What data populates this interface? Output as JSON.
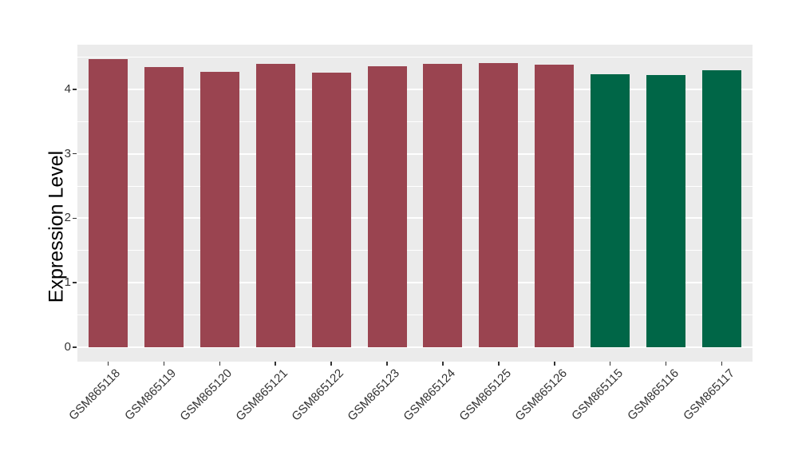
{
  "chart_data": {
    "type": "bar",
    "title": "",
    "xlabel": "",
    "ylabel": "Expression Level",
    "categories": [
      "GSM865118",
      "GSM865119",
      "GSM865120",
      "GSM865121",
      "GSM865122",
      "GSM865123",
      "GSM865124",
      "GSM865125",
      "GSM865126",
      "GSM865115",
      "GSM865116",
      "GSM865117"
    ],
    "values": [
      4.47,
      4.35,
      4.27,
      4.4,
      4.26,
      4.36,
      4.4,
      4.41,
      4.38,
      4.24,
      4.22,
      4.3
    ],
    "bar_colors": [
      "#9A4450",
      "#9A4450",
      "#9A4450",
      "#9A4450",
      "#9A4450",
      "#9A4450",
      "#9A4450",
      "#9A4450",
      "#9A4450",
      "#006647",
      "#006647",
      "#006647"
    ],
    "y_ticks": [
      "0",
      "1",
      "2",
      "3",
      "4"
    ],
    "y_tick_values": [
      0,
      1,
      2,
      3,
      4
    ],
    "y_minor_gridline_values": [
      0.5,
      1.5,
      2.5,
      3.5,
      4.5
    ],
    "ylim": [
      -0.22,
      4.69
    ],
    "x_tick_rotation_deg": 45,
    "grid": "on",
    "legend_position": "none",
    "panel_background": "#EBEBEB",
    "gridline_color": "#FFFFFF",
    "axis_text_color": "#333333",
    "axis_title_color": "#000000"
  }
}
